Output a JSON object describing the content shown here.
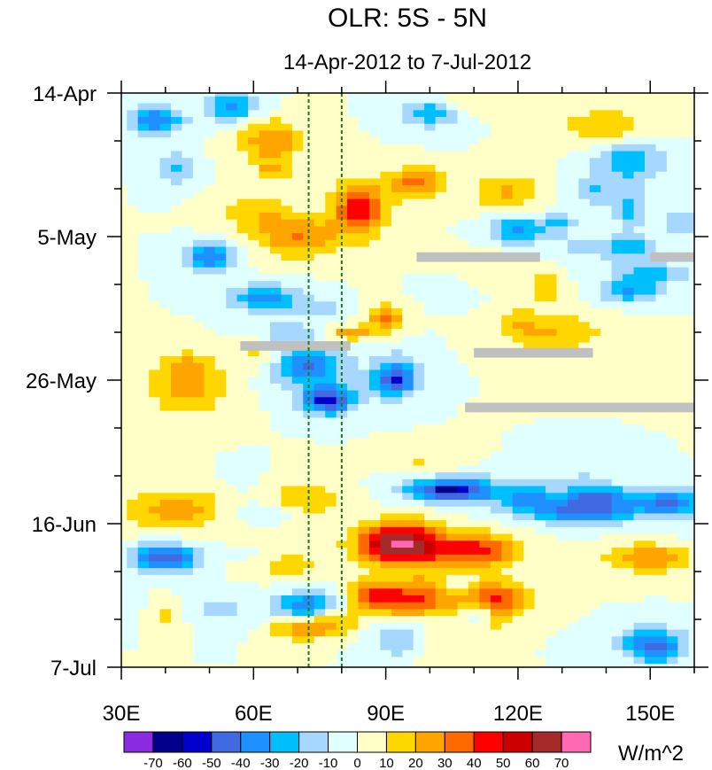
{
  "chart_data": {
    "type": "heatmap",
    "title": "OLR: 5S - 5N",
    "subtitle": "14-Apr-2012 to 7-Jul-2012",
    "x_range": [
      30,
      160
    ],
    "x_ticks": [
      {
        "value": 30,
        "label": "30E"
      },
      {
        "value": 60,
        "label": "60E"
      },
      {
        "value": 90,
        "label": "90E"
      },
      {
        "value": 120,
        "label": "120E"
      },
      {
        "value": 150,
        "label": "150E"
      }
    ],
    "y_range_days": [
      0,
      84
    ],
    "y_ticks": [
      {
        "value": 0,
        "label": "14-Apr"
      },
      {
        "value": 21,
        "label": "5-May"
      },
      {
        "value": 42,
        "label": "26-May"
      },
      {
        "value": 63,
        "label": "16-Jun"
      },
      {
        "value": 84,
        "label": "7-Jul"
      }
    ],
    "reference_lines_lon": [
      72.5,
      80
    ],
    "colorbar": {
      "unit_label": "W/m^2",
      "levels": [
        -70,
        -60,
        -50,
        -40,
        -30,
        -20,
        -10,
        0,
        10,
        20,
        30,
        40,
        50,
        60,
        70
      ],
      "colors": [
        "#8a2be2",
        "#00008b",
        "#0000cd",
        "#4169e1",
        "#1e90ff",
        "#00bfff",
        "#a6d8ff",
        "#e0ffff",
        "#ffffc8",
        "#ffd700",
        "#ffa500",
        "#ff6a00",
        "#ff0000",
        "#cd0000",
        "#a52a2a",
        "#ff69b4"
      ]
    },
    "missing_segments": [
      {
        "lon0": 97,
        "lon1": 125,
        "day": 24
      },
      {
        "lon0": 150,
        "lon1": 160,
        "day": 24
      },
      {
        "lon0": 57,
        "lon1": 82,
        "day": 37
      },
      {
        "lon0": 110,
        "lon1": 137,
        "day": 38
      },
      {
        "lon0": 108,
        "lon1": 160,
        "day": 46
      }
    ]
  }
}
